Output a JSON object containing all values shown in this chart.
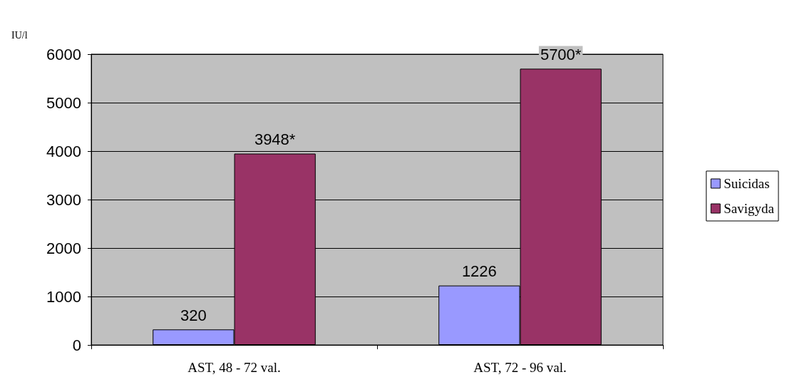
{
  "chart_data": {
    "type": "bar",
    "ylabel": "IU/l",
    "categories": [
      "AST, 48 - 72 val.",
      "AST, 72 - 96 val."
    ],
    "series": [
      {
        "name": "Suicidas",
        "color": "#9999ff",
        "values": [
          320,
          1226
        ],
        "value_labels": [
          "320",
          "1226"
        ]
      },
      {
        "name": "Savigyda",
        "color": "#993366",
        "values": [
          3948,
          5700
        ],
        "value_labels": [
          "3948*",
          "5700*"
        ]
      }
    ],
    "ylim": [
      0,
      6000
    ],
    "yticks": [
      0,
      1000,
      2000,
      3000,
      4000,
      5000,
      6000
    ],
    "grid": "y",
    "legend": "right"
  }
}
